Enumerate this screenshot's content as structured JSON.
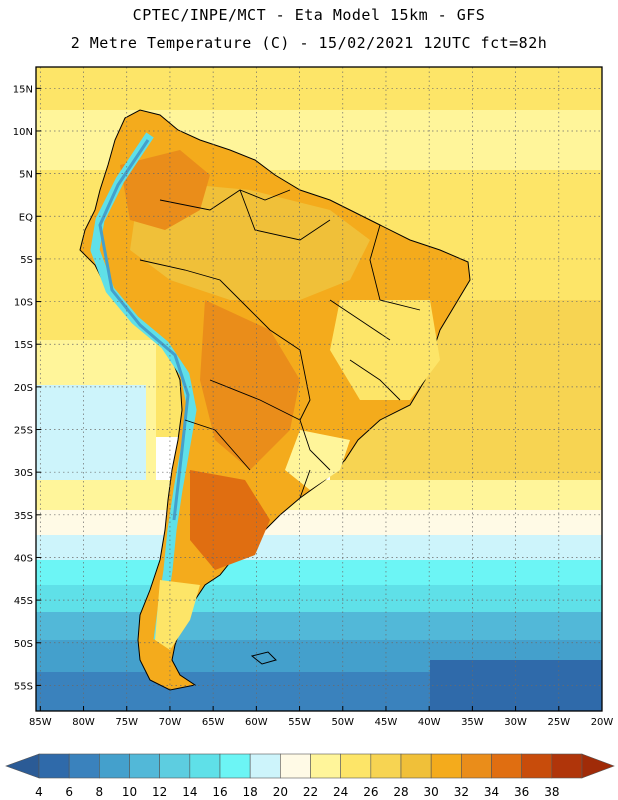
{
  "title": {
    "line1": "CPTEC/INPE/MCT -  Eta Model 15km - GFS",
    "line2": "2 Metre Temperature (C) - 15/02/2021 12UTC fct=82h"
  },
  "map": {
    "lat_labels": [
      "15N",
      "10N",
      "5N",
      "EQ",
      "5S",
      "10S",
      "15S",
      "20S",
      "25S",
      "30S",
      "35S",
      "40S",
      "45S",
      "50S",
      "55S"
    ],
    "lat_values": [
      15,
      10,
      5,
      0,
      -5,
      -10,
      -15,
      -20,
      -25,
      -30,
      -35,
      -40,
      -45,
      -50,
      -55
    ],
    "lon_labels": [
      "85W",
      "80W",
      "75W",
      "70W",
      "65W",
      "60W",
      "55W",
      "50W",
      "45W",
      "40W",
      "35W",
      "30W",
      "25W",
      "20W"
    ],
    "lon_values": [
      -85,
      -80,
      -75,
      -70,
      -65,
      -60,
      -55,
      -50,
      -45,
      -40,
      -35,
      -30,
      -25,
      -20
    ],
    "lon_range": [
      -85.5,
      -20
    ],
    "lat_range": [
      -58,
      17.5
    ]
  },
  "colorbar": {
    "labels": [
      "4",
      "6",
      "8",
      "10",
      "12",
      "14",
      "16",
      "18",
      "20",
      "22",
      "24",
      "26",
      "28",
      "30",
      "32",
      "34",
      "36",
      "38"
    ],
    "colors": [
      "#2f6aaa",
      "#3a82bd",
      "#44a0cc",
      "#52b8d8",
      "#5dcde0",
      "#5fe0e8",
      "#6cf5f5",
      "#cdf4fb",
      "#fffae6",
      "#fff59a",
      "#fde568",
      "#f7d452",
      "#f0c039",
      "#f4ab1c",
      "#ea8d1a",
      "#e06e11",
      "#c84c0b",
      "#b0350a"
    ],
    "low_color": "#2b5b96",
    "high_color": "#a02b08"
  }
}
